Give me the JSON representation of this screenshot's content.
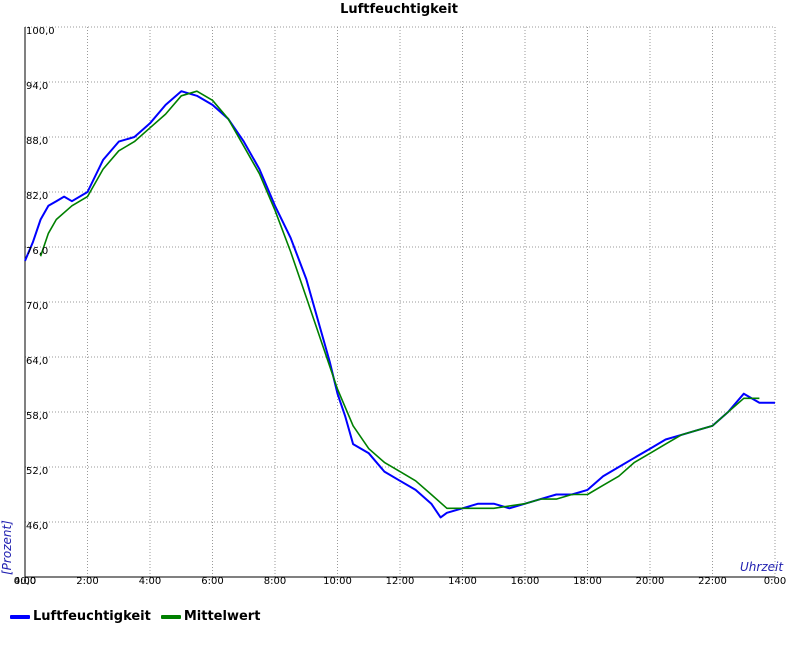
{
  "chart_data": {
    "type": "line",
    "title": "Luftfeuchtigkeit",
    "xlabel": "Uhrzeit",
    "ylabel": "[Prozent]",
    "x_unit": "hours",
    "xlim": [
      0,
      24
    ],
    "ylim": [
      40,
      100
    ],
    "grid": true,
    "legend_position": "bottom-left",
    "y_ticks": [
      "40,0",
      "46,0",
      "52,0",
      "58,0",
      "64,0",
      "70,0",
      "76,0",
      "82,0",
      "88,0",
      "94,0",
      "100,0"
    ],
    "x_ticks": [
      "0:00",
      "2:00",
      "4:00",
      "6:00",
      "8:00",
      "10:00",
      "12:00",
      "14:00",
      "16:00",
      "18:00",
      "20:00",
      "22:00",
      "0:00"
    ],
    "series": [
      {
        "name": "Luftfeuchtigkeit",
        "color": "#0000ff",
        "x": [
          0,
          0.25,
          0.5,
          0.75,
          1,
          1.25,
          1.5,
          2,
          2.5,
          3,
          3.5,
          4,
          4.5,
          5,
          5.5,
          6,
          6.5,
          7,
          7.5,
          8,
          8.5,
          9,
          9.25,
          9.5,
          9.75,
          10,
          10.25,
          10.5,
          11,
          11.5,
          12,
          12.5,
          13,
          13.3,
          13.5,
          14,
          14.5,
          15,
          15.5,
          16,
          16.5,
          17,
          17.5,
          18,
          18.5,
          19,
          19.5,
          20,
          20.5,
          21,
          21.5,
          22,
          22.5,
          23,
          23.5,
          24
        ],
        "values": [
          74.5,
          76.5,
          79.0,
          80.5,
          81.0,
          81.5,
          81.0,
          82.0,
          85.5,
          87.5,
          88.0,
          89.5,
          91.5,
          93.0,
          92.5,
          91.5,
          90.0,
          87.5,
          84.5,
          80.5,
          77.0,
          72.5,
          69.5,
          66.5,
          63.5,
          60.0,
          57.5,
          54.5,
          53.5,
          51.5,
          50.5,
          49.5,
          48.0,
          46.5,
          47.0,
          47.5,
          48.0,
          48.0,
          47.5,
          48.0,
          48.5,
          49.0,
          49.0,
          49.5,
          51.0,
          52.0,
          53.0,
          54.0,
          55.0,
          55.5,
          56.0,
          56.5,
          58.0,
          60.0,
          59.0,
          59.0
        ]
      },
      {
        "name": "Mittelwert",
        "color": "#008000",
        "x": [
          0.5,
          0.75,
          1,
          1.5,
          2,
          2.5,
          3,
          3.5,
          4,
          4.5,
          5,
          5.5,
          6,
          6.5,
          7,
          7.5,
          8,
          8.5,
          9,
          9.5,
          10,
          10.5,
          11,
          11.5,
          12,
          12.5,
          13,
          13.5,
          14,
          15,
          16,
          16.5,
          17,
          17.5,
          18,
          18.5,
          19,
          19.5,
          20,
          20.5,
          21,
          21.5,
          22,
          22.5,
          23,
          23.5
        ],
        "values": [
          75.0,
          77.5,
          79.0,
          80.5,
          81.5,
          84.5,
          86.5,
          87.5,
          89.0,
          90.5,
          92.5,
          93.0,
          92.0,
          90.0,
          87.0,
          84.0,
          80.0,
          75.5,
          70.5,
          65.5,
          60.5,
          56.5,
          54.0,
          52.5,
          51.5,
          50.5,
          49.0,
          47.5,
          47.5,
          47.5,
          48.0,
          48.5,
          48.5,
          49.0,
          49.0,
          50.0,
          51.0,
          52.5,
          53.5,
          54.5,
          55.5,
          56.0,
          56.5,
          58.0,
          59.5,
          59.5
        ]
      }
    ]
  }
}
